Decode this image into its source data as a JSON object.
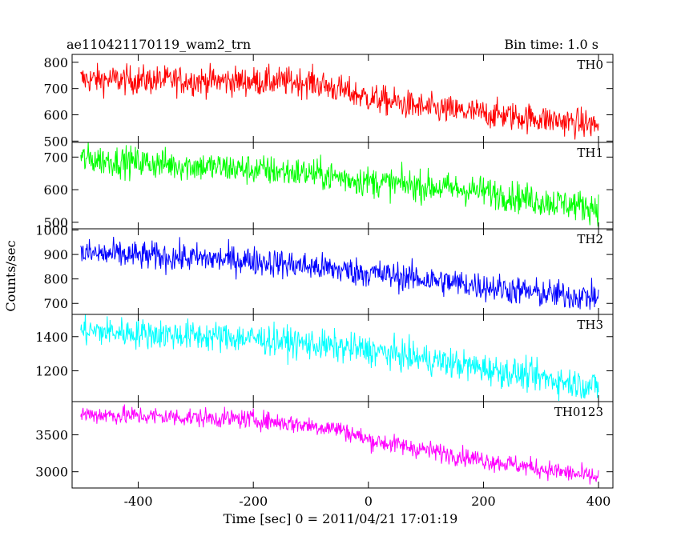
{
  "chart_data": {
    "type": "line",
    "title_left": "ae110421170119_wam2_trn",
    "title_right": "Bin time: 1.0 s",
    "xlabel": "Time [sec] 0 = 2011/04/21 17:01:19",
    "ylabel": "Counts/sec",
    "xlim": [
      -515,
      425
    ],
    "x_ticks": [
      -400,
      -200,
      0,
      200,
      400
    ],
    "x_range": [
      -500,
      400
    ],
    "x_step": 1,
    "panels": [
      {
        "name": "TH0",
        "color": "#ff0000",
        "ylim": [
          495,
          830
        ],
        "y_ticks": [
          500,
          600,
          700,
          800
        ],
        "trend": [
          [
            -500,
            735
          ],
          [
            -100,
            725
          ],
          [
            0,
            665
          ],
          [
            100,
            625
          ],
          [
            300,
            585
          ],
          [
            400,
            560
          ]
        ],
        "noise_amplitude": 28
      },
      {
        "name": "TH1",
        "color": "#00ff00",
        "ylim": [
          480,
          745
        ],
        "y_ticks": [
          500,
          600,
          700
        ],
        "trend": [
          [
            -500,
            695
          ],
          [
            -100,
            650
          ],
          [
            0,
            625
          ],
          [
            200,
            595
          ],
          [
            300,
            565
          ],
          [
            400,
            545
          ]
        ],
        "noise_amplitude": 24
      },
      {
        "name": "TH2",
        "color": "#0000ff",
        "ylim": [
          655,
          1005
        ],
        "y_ticks": [
          700,
          800,
          900,
          1000
        ],
        "trend": [
          [
            -500,
            905
          ],
          [
            -200,
            875
          ],
          [
            0,
            825
          ],
          [
            200,
            770
          ],
          [
            300,
            740
          ],
          [
            400,
            725
          ]
        ],
        "noise_amplitude": 30
      },
      {
        "name": "TH3",
        "color": "#00ffff",
        "ylim": [
          1020,
          1530
        ],
        "y_ticks": [
          1200,
          1400
        ],
        "trend": [
          [
            -500,
            1435
          ],
          [
            -200,
            1390
          ],
          [
            0,
            1320
          ],
          [
            200,
            1215
          ],
          [
            400,
            1105
          ]
        ],
        "noise_amplitude": 45
      },
      {
        "name": "TH0123",
        "color": "#ff00ff",
        "ylim": [
          2780,
          3950
        ],
        "y_ticks": [
          3000,
          3500
        ],
        "trend": [
          [
            -500,
            3780
          ],
          [
            -200,
            3710
          ],
          [
            -50,
            3580
          ],
          [
            0,
            3430
          ],
          [
            200,
            3160
          ],
          [
            400,
            2920
          ]
        ],
        "noise_amplitude": 65
      }
    ]
  }
}
